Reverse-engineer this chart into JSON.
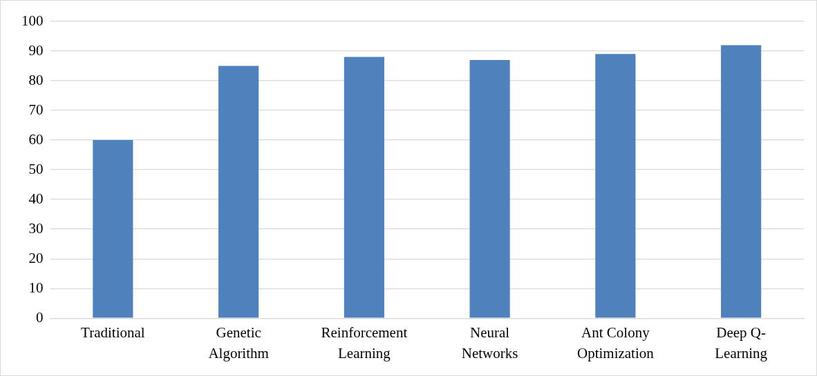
{
  "chart_data": {
    "type": "bar",
    "categories": [
      "Traditional",
      "Genetic Algorithm",
      "Reinforcement Learning",
      "Neural Networks",
      "Ant Colony Optimization",
      "Deep Q-Learning"
    ],
    "values": [
      60,
      85,
      88,
      87,
      89,
      92
    ],
    "color": "#4f81bd",
    "ylim": [
      0,
      100
    ],
    "yticks": [
      0,
      10,
      20,
      30,
      40,
      50,
      60,
      70,
      80,
      90,
      100
    ],
    "grid": "y",
    "legend": false
  }
}
